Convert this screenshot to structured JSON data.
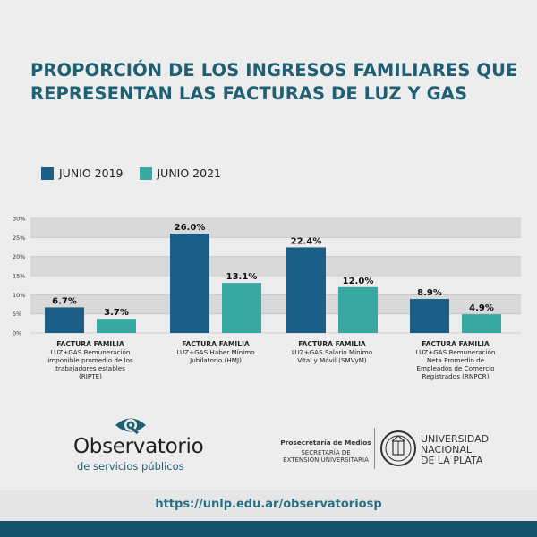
{
  "title": {
    "line1": "PROPORCIÓN DE LOS INGRESOS FAMILIARES QUE",
    "line2": "REPRESENTAN LAS FACTURAS DE LUZ Y GAS"
  },
  "colors": {
    "series_2019": "#1c5f86",
    "series_2021": "#3aa8a2",
    "title": "#1f5f74",
    "footer_bar": "#14536a"
  },
  "chart_data": {
    "type": "bar",
    "title": "PROPORCIÓN DE LOS INGRESOS FAMILIARES QUE REPRESENTAN LAS FACTURAS DE LUZ Y GAS",
    "categories": [
      {
        "head": "FACTURA FAMILIA",
        "lines": [
          "LUZ+GAS Remuneración",
          "imponible promedio de los",
          "trabajadores estables",
          "(RIPTE)"
        ]
      },
      {
        "head": "FACTURA FAMILIA",
        "lines": [
          "LUZ+GAS Haber Mínimo",
          "Jubilatorio (HMJ)"
        ]
      },
      {
        "head": "FACTURA FAMILIA",
        "lines": [
          "LUZ+GAS Salario Mínimo",
          "Vital y Móvil (SMVyM)"
        ]
      },
      {
        "head": "FACTURA FAMILIA",
        "lines": [
          "LUZ+GAS Remuneración",
          "Neta Promedio de",
          "Empleados de Comercio",
          "Registrados (RNPCR)"
        ]
      }
    ],
    "series": [
      {
        "name": "JUNIO 2019",
        "values": [
          6.7,
          26.0,
          22.4,
          8.9
        ],
        "labels": [
          "6.7%",
          "26.0%",
          "22.4%",
          "8.9%"
        ]
      },
      {
        "name": "JUNIO 2021",
        "values": [
          3.7,
          13.1,
          12.0,
          4.9
        ],
        "labels": [
          "3.7%",
          "13.1%",
          "12.0%",
          "4.9%"
        ]
      }
    ],
    "y_ticks": [
      "0%",
      "5%",
      "10%",
      "15%",
      "20%",
      "25%",
      "30%"
    ],
    "ylim": [
      0,
      30
    ],
    "legend_position": "top-left"
  },
  "logo": {
    "name": "Observatorio",
    "tagline": "de servicios públicos"
  },
  "prosecretaria": {
    "line1": "Prosecretaría de Medios",
    "line2": "SECRETARÍA DE",
    "line3": "EXTENSIÓN UNIVERSITARIA"
  },
  "university": {
    "line1": "UNIVERSIDAD",
    "line2": "NACIONAL",
    "line3": "DE LA PLATA"
  },
  "footer": {
    "url": "https://unlp.edu.ar/observatoriosp"
  }
}
